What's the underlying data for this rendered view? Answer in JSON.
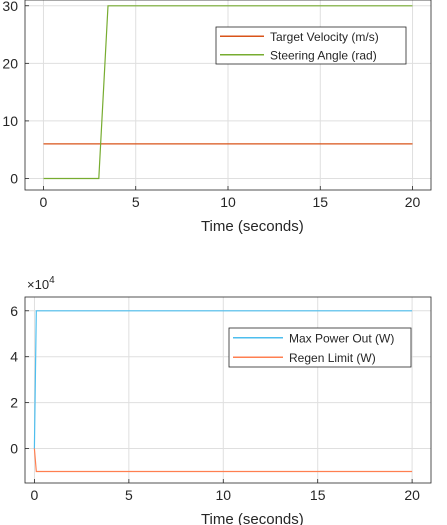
{
  "chart_data": [
    {
      "type": "line",
      "xlabel": "Time (seconds)",
      "xlim": [
        -1,
        21
      ],
      "ylim": [
        -2,
        31
      ],
      "xticks": [
        0,
        5,
        10,
        15,
        20
      ],
      "xtick_labels": [
        "0",
        "5",
        "10",
        "15",
        "20"
      ],
      "yticks": [
        0,
        10,
        20,
        30
      ],
      "ytick_labels": [
        "0",
        "10",
        "20",
        "30"
      ],
      "grid": true,
      "legend_position": "top-right",
      "series": [
        {
          "name": "Target Velocity (m/s)",
          "color": "#d95319",
          "x": [
            0,
            20
          ],
          "y": [
            6,
            6
          ]
        },
        {
          "name": "Steering Angle (rad)",
          "color": "#77ac30",
          "x": [
            0,
            3,
            3.5,
            20
          ],
          "y": [
            0,
            0,
            30,
            30
          ]
        }
      ]
    },
    {
      "type": "line",
      "xlabel": "Time (seconds)",
      "exponent_label": "×10",
      "exponent_power": "4",
      "xlim": [
        -0.5,
        21
      ],
      "ylim": [
        -15000,
        66000
      ],
      "xticks": [
        0,
        5,
        10,
        15,
        20
      ],
      "xtick_labels": [
        "0",
        "5",
        "10",
        "15",
        "20"
      ],
      "yticks": [
        0,
        20000,
        40000,
        60000
      ],
      "ytick_labels": [
        "0",
        "2",
        "4",
        "6"
      ],
      "grid": true,
      "legend_position": "right",
      "series": [
        {
          "name": "Max Power Out (W)",
          "color": "#4dbeee",
          "x": [
            0,
            0.1,
            20
          ],
          "y": [
            0,
            60000,
            60000
          ]
        },
        {
          "name": "Regen Limit (W)",
          "color": "#ff7f50",
          "x": [
            0,
            0.1,
            20
          ],
          "y": [
            0,
            -10000,
            -10000
          ]
        }
      ]
    }
  ]
}
